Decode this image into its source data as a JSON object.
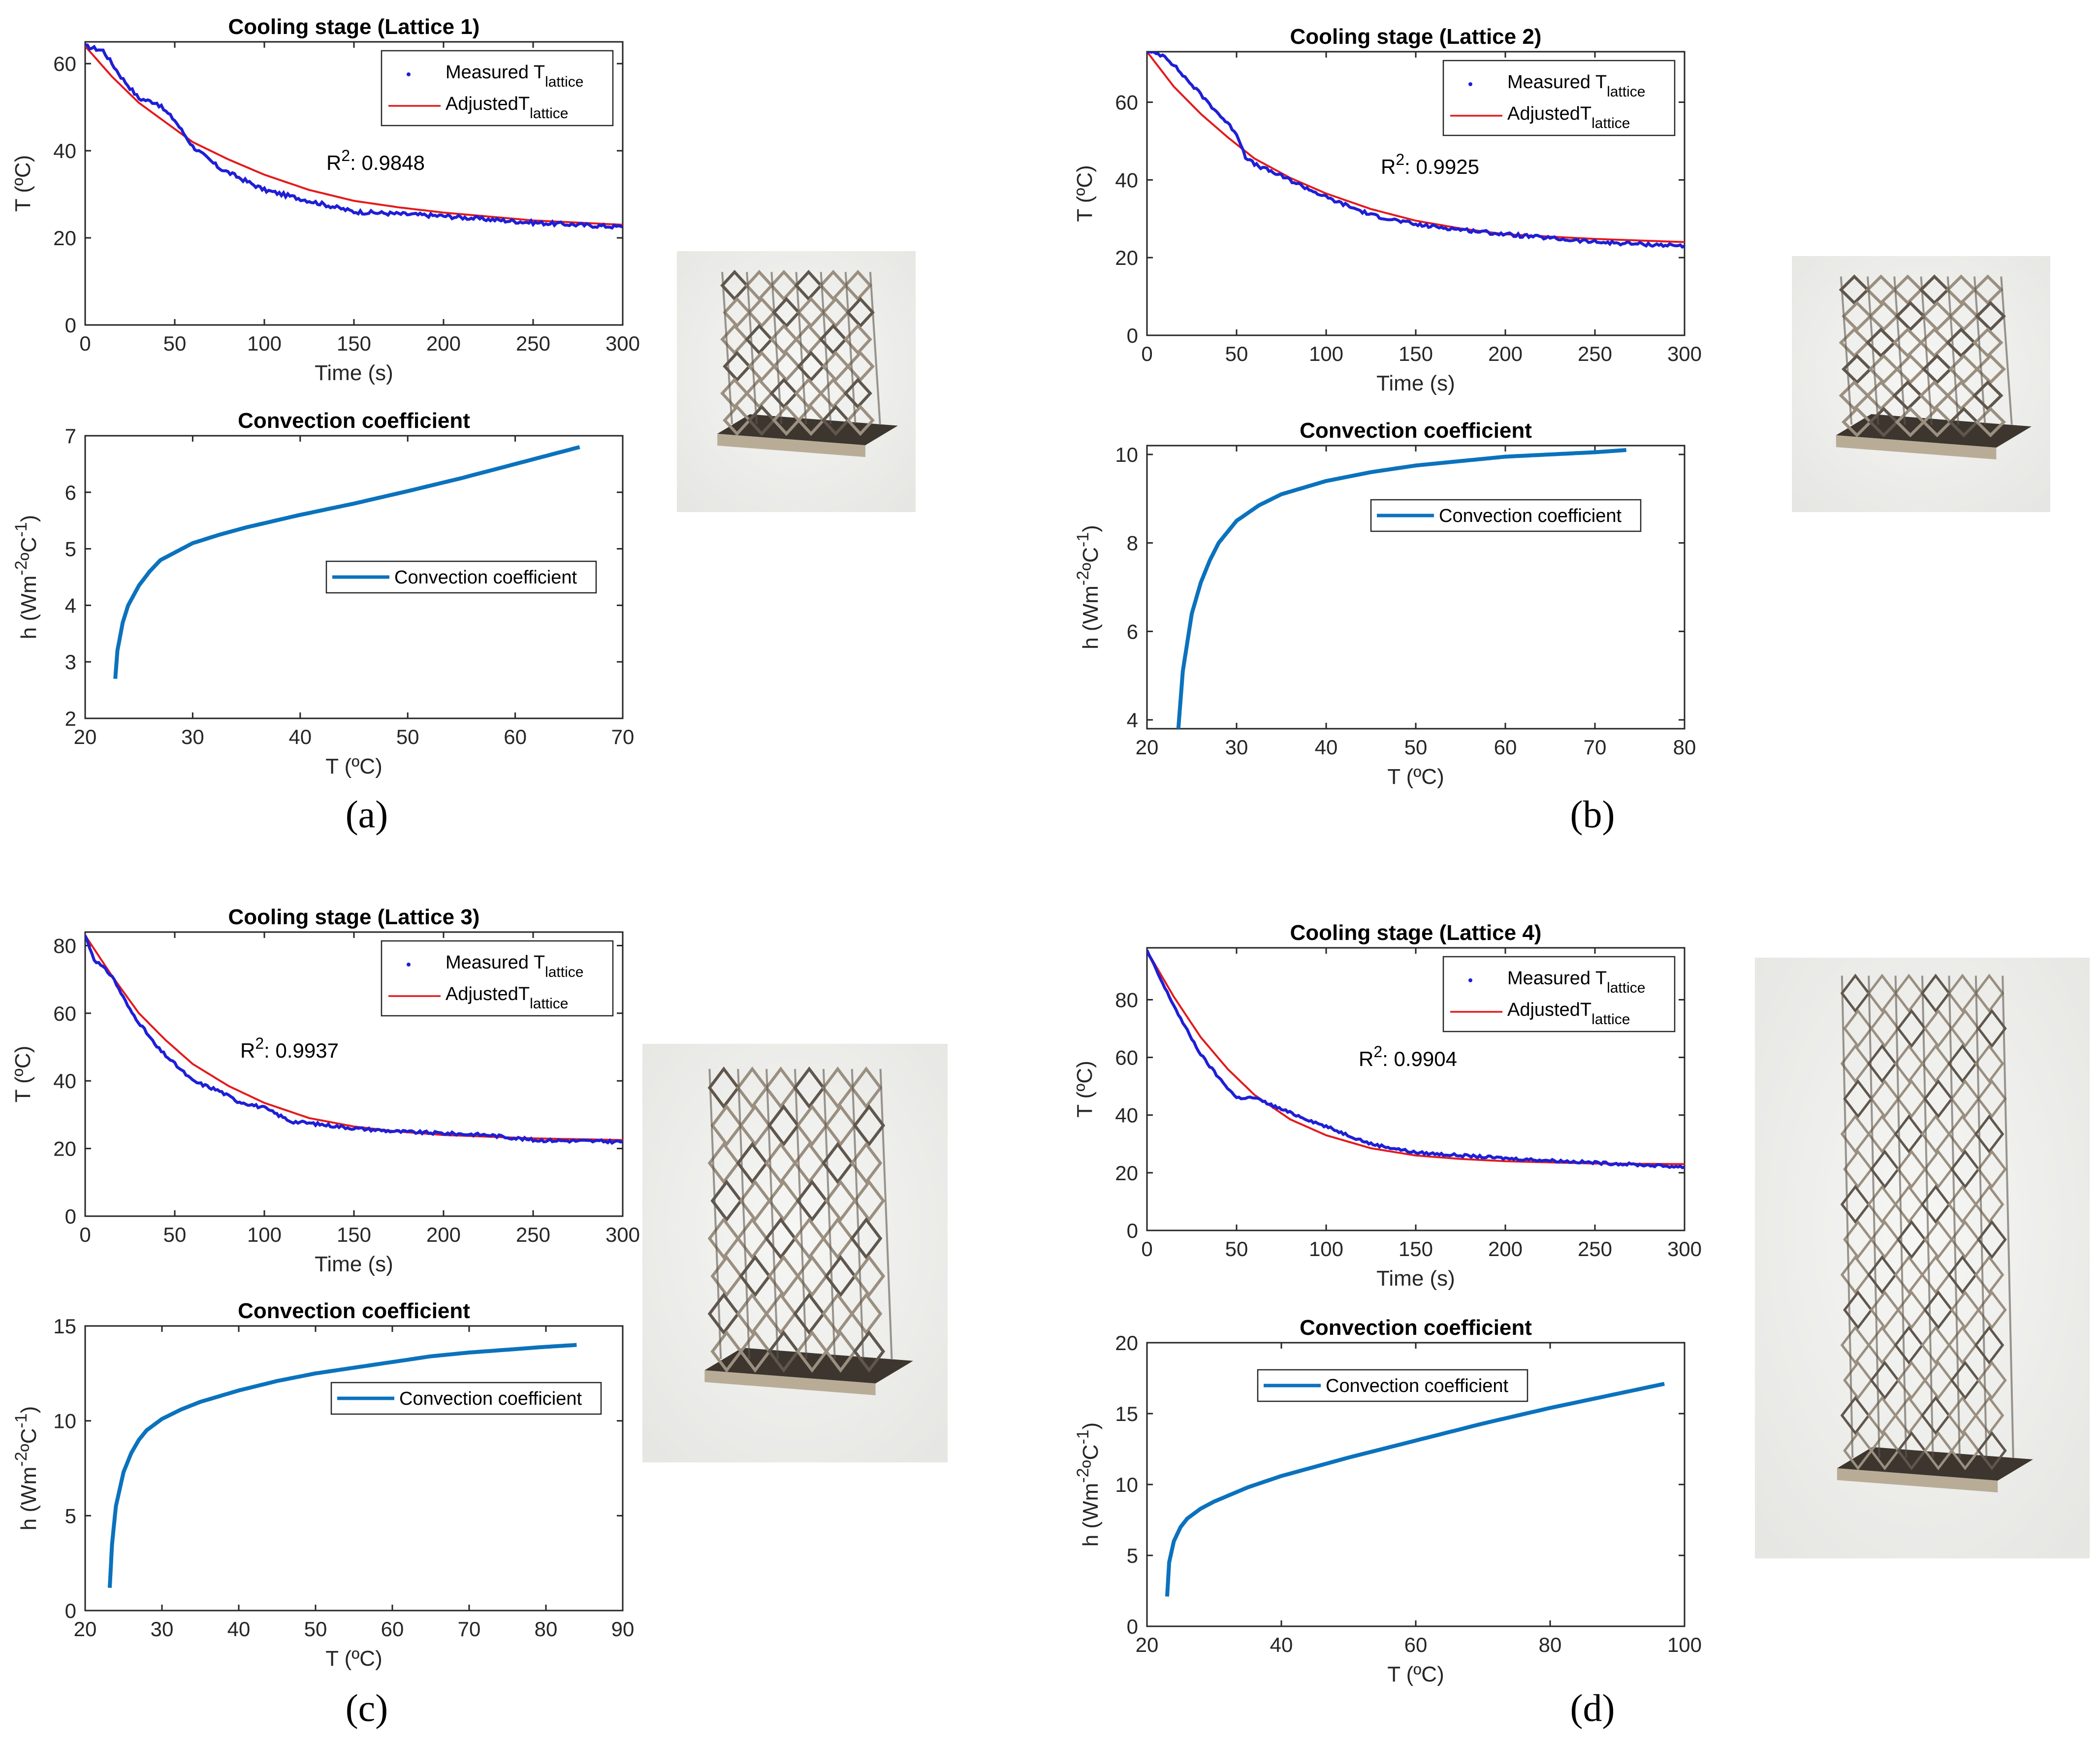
{
  "figure": {
    "panels": [
      {
        "id": "a",
        "caption": "(a)",
        "photo": {
          "kind": "small-cube"
        },
        "cooling": {
          "title": "Cooling stage (Lattice 1)",
          "xlabel": "Time (s)",
          "ylabel": "T (ºC)",
          "xticks": [
            "0",
            "50",
            "100",
            "150",
            "200",
            "250",
            "300"
          ],
          "yticks": [
            "0",
            "20",
            "40",
            "60"
          ],
          "legend": [
            "Measured T",
            "AdjustedT"
          ],
          "legend_sub": "lattice",
          "r2": "0.9848",
          "r2_prefix": "R",
          "r2_sup": "2",
          "r2_suffix": ": "
        },
        "conv": {
          "title": "Convection coefficient",
          "xlabel": "T (ºC)",
          "ylabel": "h (Wm-2ºC-1)",
          "xticks": [
            "20",
            "30",
            "40",
            "50",
            "60",
            "70"
          ],
          "yticks": [
            "2",
            "3",
            "4",
            "5",
            "6",
            "7"
          ],
          "legend": "Convection coefficient"
        }
      },
      {
        "id": "b",
        "caption": "(b)",
        "photo": {
          "kind": "small-cube"
        },
        "cooling": {
          "title": "Cooling stage (Lattice 2)",
          "xlabel": "Time (s)",
          "ylabel": "T (ºC)",
          "xticks": [
            "0",
            "50",
            "100",
            "150",
            "200",
            "250",
            "300"
          ],
          "yticks": [
            "0",
            "20",
            "40",
            "60"
          ],
          "legend": [
            "Measured T",
            "AdjustedT"
          ],
          "legend_sub": "lattice",
          "r2": "0.9925",
          "r2_prefix": "R",
          "r2_sup": "2",
          "r2_suffix": ": "
        },
        "conv": {
          "title": "Convection coefficient",
          "xlabel": "T (ºC)",
          "ylabel": "h (Wm-2ºC-1)",
          "xticks": [
            "20",
            "30",
            "40",
            "50",
            "60",
            "70",
            "80"
          ],
          "yticks": [
            "4",
            "6",
            "8",
            "10"
          ],
          "legend": "Convection coefficient"
        }
      },
      {
        "id": "c",
        "caption": "(c)",
        "photo": {
          "kind": "tall-cube"
        },
        "cooling": {
          "title": "Cooling stage (Lattice 3)",
          "xlabel": "Time (s)",
          "ylabel": "T (ºC)",
          "xticks": [
            "0",
            "50",
            "100",
            "150",
            "200",
            "250",
            "300"
          ],
          "yticks": [
            "0",
            "20",
            "40",
            "60",
            "80"
          ],
          "legend": [
            "Measured T",
            "AdjustedT"
          ],
          "legend_sub": "lattice",
          "r2": "0.9937",
          "r2_prefix": "R",
          "r2_sup": "2",
          "r2_suffix": ": "
        },
        "conv": {
          "title": "Convection coefficient",
          "xlabel": "T (ºC)",
          "ylabel": "h (Wm-2ºC-1)",
          "xticks": [
            "20",
            "30",
            "40",
            "50",
            "60",
            "70",
            "80",
            "90"
          ],
          "yticks": [
            "0",
            "5",
            "10",
            "15"
          ],
          "legend": "Convection coefficient"
        }
      },
      {
        "id": "d",
        "caption": "(d)",
        "photo": {
          "kind": "tower"
        },
        "cooling": {
          "title": "Cooling stage (Lattice 4)",
          "xlabel": "Time (s)",
          "ylabel": "T (ºC)",
          "xticks": [
            "0",
            "50",
            "100",
            "150",
            "200",
            "250",
            "300"
          ],
          "yticks": [
            "0",
            "20",
            "40",
            "60",
            "80"
          ],
          "legend": [
            "Measured T",
            "AdjustedT"
          ],
          "legend_sub": "lattice",
          "r2": "0.9904",
          "r2_prefix": "R",
          "r2_sup": "2",
          "r2_suffix": ": "
        },
        "conv": {
          "title": "Convection coefficient",
          "xlabel": "T (ºC)",
          "ylabel": "h (Wm-2ºC-1)",
          "xticks": [
            "20",
            "40",
            "60",
            "80",
            "100"
          ],
          "yticks": [
            "0",
            "5",
            "10",
            "15",
            "20"
          ],
          "legend": "Convection coefficient"
        }
      }
    ],
    "colors": {
      "measured": "#1f1fd6",
      "adjusted": "#e31a1c",
      "convection": "#0b72bd",
      "axis": "#262626",
      "photo_bg": "#e6e6e3",
      "metal": "#9a8f80",
      "metal_dark": "#5f574d",
      "plate": "#3d362f"
    }
  },
  "chart_data": [
    {
      "panel": "a",
      "type": "line",
      "title": "Cooling stage (Lattice 1)",
      "xlabel": "Time (s)",
      "ylabel": "T (ºC)",
      "xlim": [
        0,
        300
      ],
      "ylim": [
        0,
        65
      ],
      "series": [
        {
          "name": "Measured Tlattice",
          "x": [
            0,
            10,
            20,
            30,
            40,
            50,
            60,
            75,
            100,
            125,
            150,
            200,
            250,
            300
          ],
          "y": [
            64,
            63,
            57,
            52,
            51,
            47,
            41,
            36,
            31,
            28.5,
            26,
            25,
            23.5,
            22.5
          ]
        },
        {
          "name": "AdjustedTlattice",
          "x": [
            0,
            15,
            30,
            45,
            60,
            80,
            100,
            125,
            150,
            175,
            200,
            250,
            300
          ],
          "y": [
            64,
            57,
            51,
            46.5,
            42,
            38,
            34.5,
            31,
            28.5,
            27,
            25.8,
            24,
            23
          ]
        }
      ],
      "annotation": "R2: 0.9848"
    },
    {
      "panel": "a",
      "type": "line",
      "title": "Convection coefficient",
      "xlabel": "T (ºC)",
      "ylabel": "h (Wm-2ºC-1)",
      "xlim": [
        20,
        70
      ],
      "ylim": [
        2,
        7
      ],
      "series": [
        {
          "name": "Convection coefficient",
          "x": [
            22.8,
            23,
            23.5,
            24,
            25,
            26,
            27,
            28,
            30,
            32.5,
            35,
            40,
            45,
            50,
            55,
            60,
            66
          ],
          "y": [
            2.7,
            3.2,
            3.7,
            4.0,
            4.35,
            4.6,
            4.8,
            4.9,
            5.1,
            5.25,
            5.38,
            5.6,
            5.8,
            6.02,
            6.25,
            6.5,
            6.8
          ]
        }
      ]
    },
    {
      "panel": "b",
      "type": "line",
      "title": "Cooling stage (Lattice 2)",
      "xlabel": "Time (s)",
      "ylabel": "T (ºC)",
      "xlim": [
        0,
        300
      ],
      "ylim": [
        0,
        73
      ],
      "series": [
        {
          "name": "Measured Tlattice",
          "x": [
            0,
            10,
            20,
            30,
            40,
            50,
            55,
            60,
            75,
            100,
            125,
            150,
            200,
            250,
            300
          ],
          "y": [
            73,
            72,
            67,
            62,
            57,
            52,
            46,
            44,
            41,
            35.5,
            31,
            28.5,
            26,
            24,
            23
          ]
        },
        {
          "name": "AdjustedTlattice",
          "x": [
            0,
            15,
            30,
            45,
            60,
            80,
            100,
            125,
            150,
            175,
            200,
            250,
            300
          ],
          "y": [
            73,
            64,
            57,
            51,
            45.5,
            40.5,
            36.5,
            32.5,
            29.5,
            27.5,
            26,
            24.8,
            24
          ]
        }
      ],
      "annotation": "R2: 0.9925"
    },
    {
      "panel": "b",
      "type": "line",
      "title": "Convection coefficient",
      "xlabel": "T (ºC)",
      "ylabel": "h (Wm-2ºC-1)",
      "xlim": [
        20,
        80
      ],
      "ylim": [
        3.8,
        10.2
      ],
      "series": [
        {
          "name": "Convection coefficient",
          "x": [
            23.5,
            24,
            25,
            26,
            27,
            28,
            30,
            32.5,
            35,
            40,
            45,
            50,
            55,
            60,
            65,
            70,
            73.5
          ],
          "y": [
            3.8,
            5.1,
            6.4,
            7.1,
            7.6,
            8.0,
            8.5,
            8.85,
            9.1,
            9.4,
            9.6,
            9.75,
            9.85,
            9.95,
            10.0,
            10.05,
            10.1
          ]
        }
      ]
    },
    {
      "panel": "c",
      "type": "line",
      "title": "Cooling stage (Lattice 3)",
      "xlabel": "Time (s)",
      "ylabel": "T (ºC)",
      "xlim": [
        0,
        300
      ],
      "ylim": [
        0,
        84
      ],
      "series": [
        {
          "name": "Measured Tlattice",
          "x": [
            0,
            5,
            15,
            25,
            40,
            50,
            60,
            75,
            85,
            100,
            115,
            125,
            150,
            175,
            200,
            225,
            250,
            300
          ],
          "y": [
            83,
            76,
            71,
            61,
            50,
            45,
            40,
            37,
            34,
            32,
            28,
            27.5,
            26,
            25,
            24.5,
            24,
            22.5,
            22
          ]
        },
        {
          "name": "AdjustedTlattice",
          "x": [
            0,
            15,
            30,
            45,
            60,
            80,
            100,
            125,
            150,
            175,
            200,
            250,
            300
          ],
          "y": [
            83,
            71,
            60,
            52,
            45,
            38.5,
            33.5,
            29,
            26.5,
            25,
            24,
            23,
            22.5
          ]
        }
      ],
      "annotation": "R2: 0.9937"
    },
    {
      "panel": "c",
      "type": "line",
      "title": "Convection coefficient",
      "xlabel": "T (ºC)",
      "ylabel": "h (Wm-2ºC-1)",
      "xlim": [
        20,
        90
      ],
      "ylim": [
        0,
        15
      ],
      "series": [
        {
          "name": "Convection coefficient",
          "x": [
            23.2,
            23.5,
            24,
            25,
            26,
            27,
            28,
            30,
            32.5,
            35,
            40,
            45,
            50,
            55,
            60,
            65,
            70,
            75,
            80,
            84
          ],
          "y": [
            1.2,
            3.5,
            5.5,
            7.3,
            8.3,
            9.0,
            9.5,
            10.1,
            10.6,
            11.0,
            11.6,
            12.1,
            12.5,
            12.8,
            13.1,
            13.4,
            13.6,
            13.75,
            13.9,
            14.0
          ]
        }
      ]
    },
    {
      "panel": "d",
      "type": "line",
      "title": "Cooling stage (Lattice 4)",
      "xlabel": "Time (s)",
      "ylabel": "T (ºC)",
      "xlim": [
        0,
        300
      ],
      "ylim": [
        0,
        98
      ],
      "series": [
        {
          "name": "Measured Tlattice",
          "x": [
            0,
            10,
            20,
            30,
            40,
            50,
            55,
            60,
            75,
            100,
            125,
            150,
            200,
            250,
            300
          ],
          "y": [
            97,
            84,
            72,
            61,
            53,
            46,
            46,
            46,
            42,
            36,
            30,
            27,
            25,
            23.5,
            22
          ]
        },
        {
          "name": "AdjustedTlattice",
          "x": [
            0,
            15,
            30,
            45,
            60,
            80,
            100,
            125,
            150,
            175,
            200,
            250,
            300
          ],
          "y": [
            97,
            81,
            67,
            56,
            47,
            38.5,
            33,
            28.5,
            26,
            24.8,
            24,
            23.2,
            23
          ]
        }
      ],
      "annotation": "R2: 0.9904"
    },
    {
      "panel": "d",
      "type": "line",
      "title": "Convection coefficient",
      "xlabel": "T (ºC)",
      "ylabel": "h (Wm-2ºC-1)",
      "xlim": [
        20,
        100
      ],
      "ylim": [
        0,
        20
      ],
      "series": [
        {
          "name": "Convection coefficient",
          "x": [
            23,
            23.3,
            24,
            25,
            26,
            28,
            30,
            35,
            40,
            50,
            60,
            70,
            80,
            90,
            97
          ],
          "y": [
            2.1,
            4.5,
            6.0,
            7.0,
            7.6,
            8.3,
            8.8,
            9.8,
            10.6,
            11.9,
            13.1,
            14.3,
            15.4,
            16.4,
            17.1
          ]
        }
      ]
    }
  ]
}
